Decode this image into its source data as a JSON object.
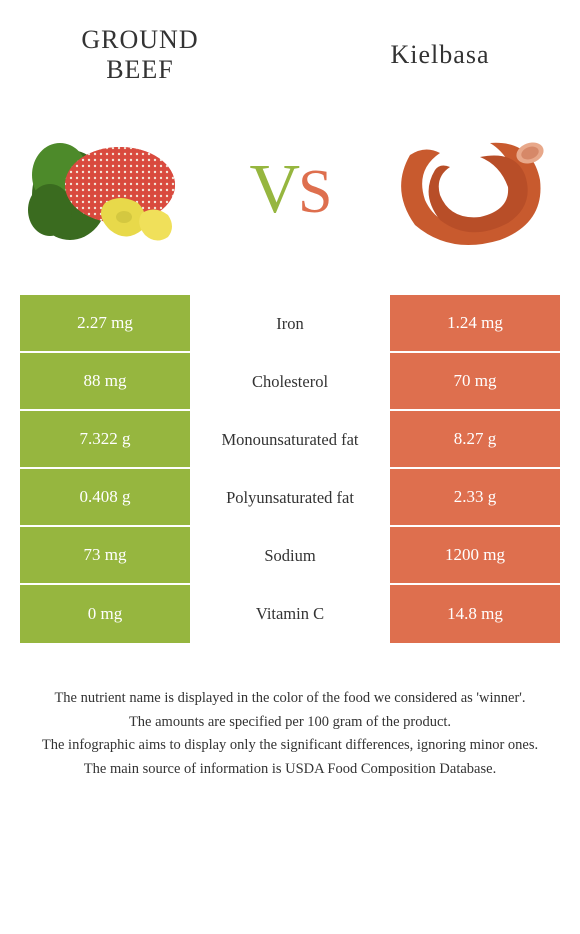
{
  "foods": {
    "left": {
      "title_line1": "GROUND",
      "title_line2": "BEEF"
    },
    "right": {
      "title": "Kielbasa"
    }
  },
  "vs": {
    "v": "V",
    "s": "S"
  },
  "colors": {
    "left": "#96b63f",
    "right": "#de6f4e",
    "background": "#ffffff"
  },
  "rows": [
    {
      "left": "2.27 mg",
      "label": "Iron",
      "right": "1.24 mg",
      "winner": "left"
    },
    {
      "left": "88 mg",
      "label": "Cholesterol",
      "right": "70 mg",
      "winner": "left"
    },
    {
      "left": "7.322 g",
      "label": "Monounsaturated fat",
      "right": "8.27 g",
      "winner": "right"
    },
    {
      "left": "0.408 g",
      "label": "Polyunsaturated fat",
      "right": "2.33 g",
      "winner": "right"
    },
    {
      "left": "73 mg",
      "label": "Sodium",
      "right": "1200 mg",
      "winner": "left"
    },
    {
      "left": "0 mg",
      "label": "Vitamin C",
      "right": "14.8 mg",
      "winner": "right"
    }
  ],
  "footer": [
    "The nutrient name is displayed in the color of the food we considered as 'winner'.",
    "The amounts are specified per 100 gram of the product.",
    "The infographic aims to display only the significant differences, ignoring minor ones.",
    "The main source of information is USDA Food Composition Database."
  ]
}
